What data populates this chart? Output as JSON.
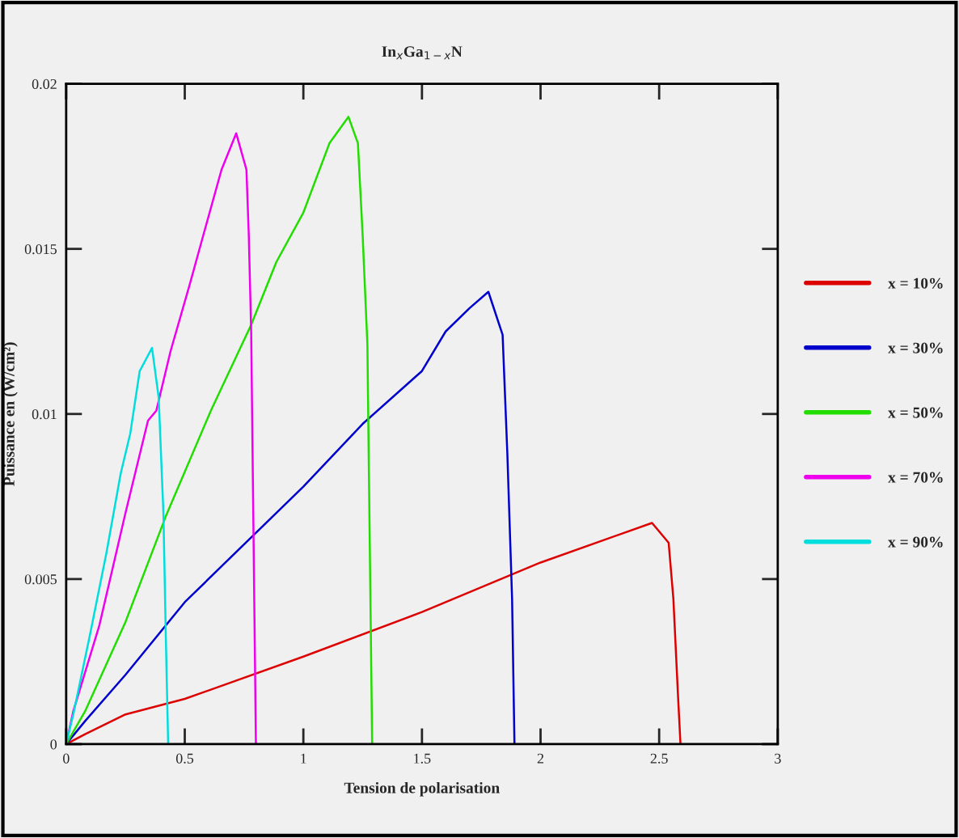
{
  "chart_data": {
    "type": "line",
    "title": "In$_{x}$Ga$_{1−x}$N",
    "xlabel": "Tension de polarisation",
    "ylabel": "Puissance en (W/cm²)",
    "xlim": [
      0,
      3
    ],
    "xticks": [
      0,
      0.5,
      1,
      1.5,
      2,
      2.5,
      3
    ],
    "ylim": [
      0,
      0.02
    ],
    "yticks": [
      0,
      0.005,
      0.01,
      0.015,
      0.02
    ],
    "grid": false,
    "legend": "right",
    "line_style": "solid",
    "marker": "none",
    "series": [
      {
        "name": "x = 10%",
        "color": "#dd0000",
        "x": [
          0,
          0.08,
          0.25,
          0.5,
          1,
          1.5,
          2,
          2.47,
          2.54,
          2.56,
          2.58,
          2.59
        ],
        "values": [
          0,
          0.0003,
          0.0009,
          0.00137,
          0.00265,
          0.004,
          0.0055,
          0.0067,
          0.0061,
          0.0044,
          0.0014,
          0
        ]
      },
      {
        "name": "x = 30%",
        "color": "#0000cc",
        "x": [
          0,
          0.08,
          0.25,
          0.5,
          1,
          1.25,
          1.5,
          1.6,
          1.7,
          1.78,
          1.84,
          1.86,
          1.88,
          1.89
        ],
        "values": [
          0,
          0.0007,
          0.0021,
          0.0043,
          0.0078,
          0.0097,
          0.0113,
          0.0125,
          0.0132,
          0.0137,
          0.0124,
          0.0088,
          0.0044,
          0
        ]
      },
      {
        "name": "x = 50%",
        "color": "#22dd00",
        "x": [
          0,
          0.08,
          0.25,
          0.42,
          0.61,
          0.78,
          0.886,
          1.0,
          1.11,
          1.19,
          1.23,
          1.25,
          1.27,
          1.29
        ],
        "values": [
          0,
          0.001,
          0.0037,
          0.0069,
          0.0101,
          0.0127,
          0.0146,
          0.0161,
          0.0182,
          0.019,
          0.0182,
          0.0154,
          0.0121,
          0
        ]
      },
      {
        "name": "x = 70%",
        "color": "#ee00ee",
        "x": [
          0,
          0.03,
          0.14,
          0.25,
          0.345,
          0.38,
          0.44,
          0.52,
          0.57,
          0.655,
          0.717,
          0.76,
          0.77,
          0.78,
          0.8
        ],
        "values": [
          0,
          0.001,
          0.0036,
          0.007,
          0.0098,
          0.0101,
          0.0119,
          0.0139,
          0.0152,
          0.0174,
          0.0185,
          0.0174,
          0.0154,
          0.0125,
          0
        ]
      },
      {
        "name": "x = 90%",
        "color": "#00dddd",
        "x": [
          0,
          0.03,
          0.1,
          0.17,
          0.23,
          0.27,
          0.31,
          0.362,
          0.39,
          0.41,
          0.42,
          0.43
        ],
        "values": [
          0,
          0.0009,
          0.0033,
          0.0058,
          0.0082,
          0.0094,
          0.0113,
          0.012,
          0.0105,
          0.007,
          0.0033,
          0
        ]
      }
    ]
  }
}
